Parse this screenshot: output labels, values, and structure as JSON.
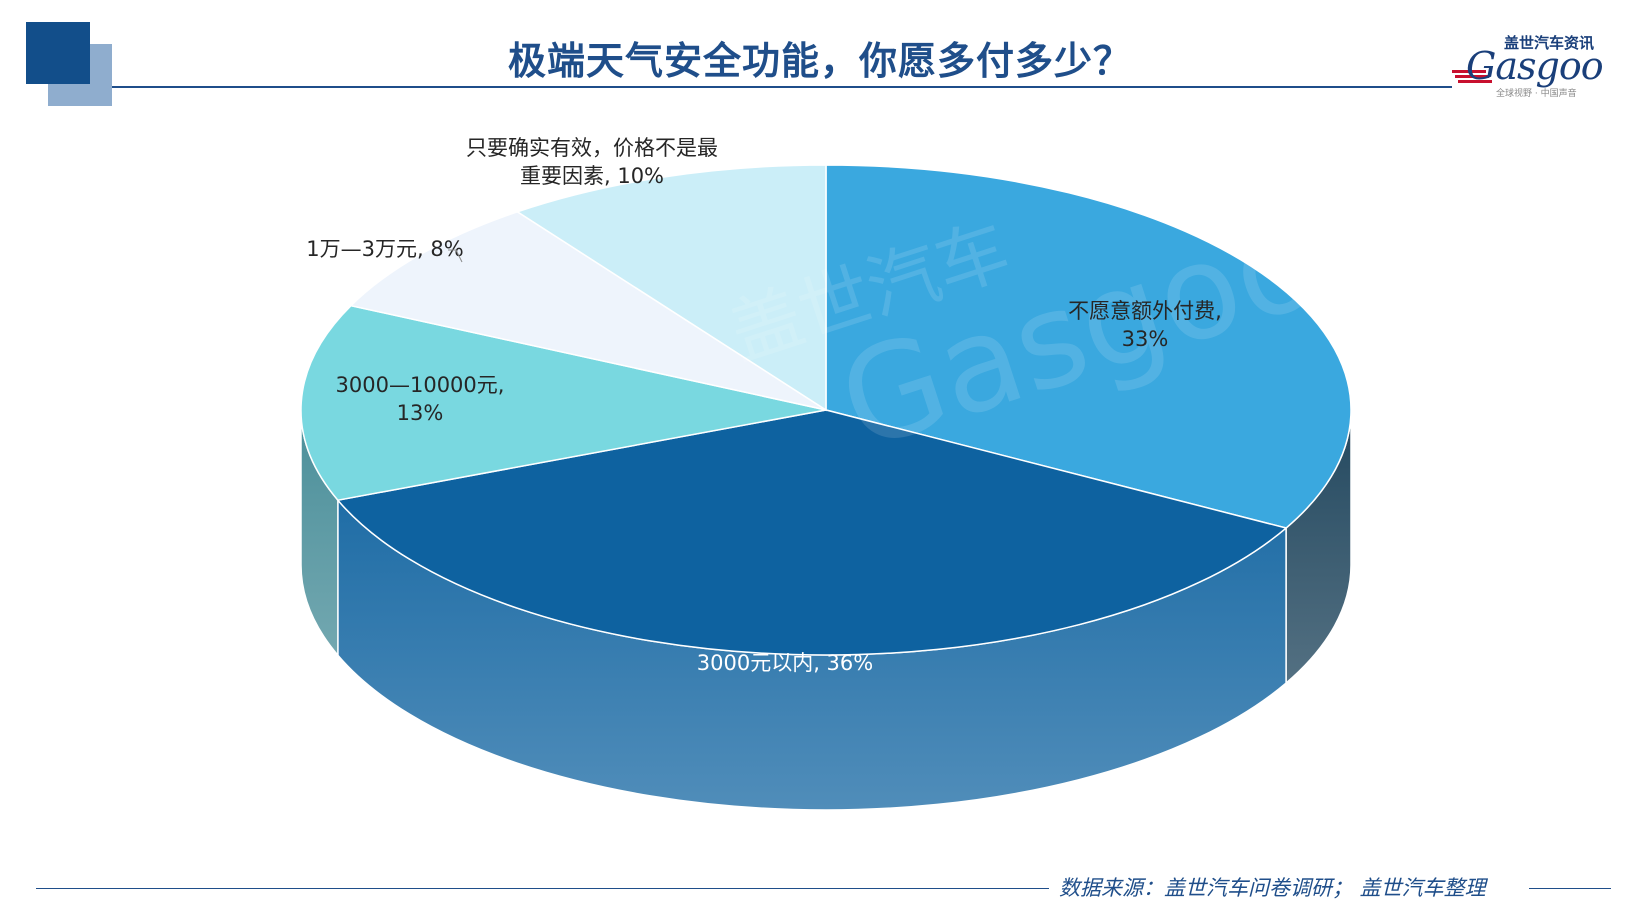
{
  "header": {
    "title": "极端天气安全功能，你愿多付多少？"
  },
  "logo": {
    "brand_cn": "盖世汽车资讯",
    "brand_en": "Gasgoo",
    "tagline": "全球视野 · 中国声音"
  },
  "footer": {
    "source": "数据来源：盖世汽车问卷调研； 盖世汽车整理"
  },
  "watermark": {
    "text_cn": "盖世汽车",
    "text_en": "Gasgoo"
  },
  "chart_data": {
    "type": "pie",
    "style": "3d",
    "slices": [
      {
        "label_lines": [
          "不愿意额外付费,",
          "33%"
        ],
        "value": 33,
        "color": "#3aa8df",
        "side_color": "#23485f"
      },
      {
        "label_lines": [
          "3000元以内, 36%"
        ],
        "value": 36,
        "color": "#0e62a0",
        "side_color": "#1f6da6"
      },
      {
        "label_lines": [
          "3000—10000元,",
          "13%"
        ],
        "value": 13,
        "color": "#79d8e0",
        "side_color": "#4b8f9a"
      },
      {
        "label_lines": [
          "1万—3万元, 8%"
        ],
        "value": 8,
        "color": "#eef4fc",
        "side_color": "#c7cfdb"
      },
      {
        "label_lines": [
          "只要确实有效，价格不是最",
          "重要因素, 10%"
        ],
        "value": 10,
        "color": "#cbeef8",
        "side_color": "#9fcadc"
      }
    ]
  }
}
